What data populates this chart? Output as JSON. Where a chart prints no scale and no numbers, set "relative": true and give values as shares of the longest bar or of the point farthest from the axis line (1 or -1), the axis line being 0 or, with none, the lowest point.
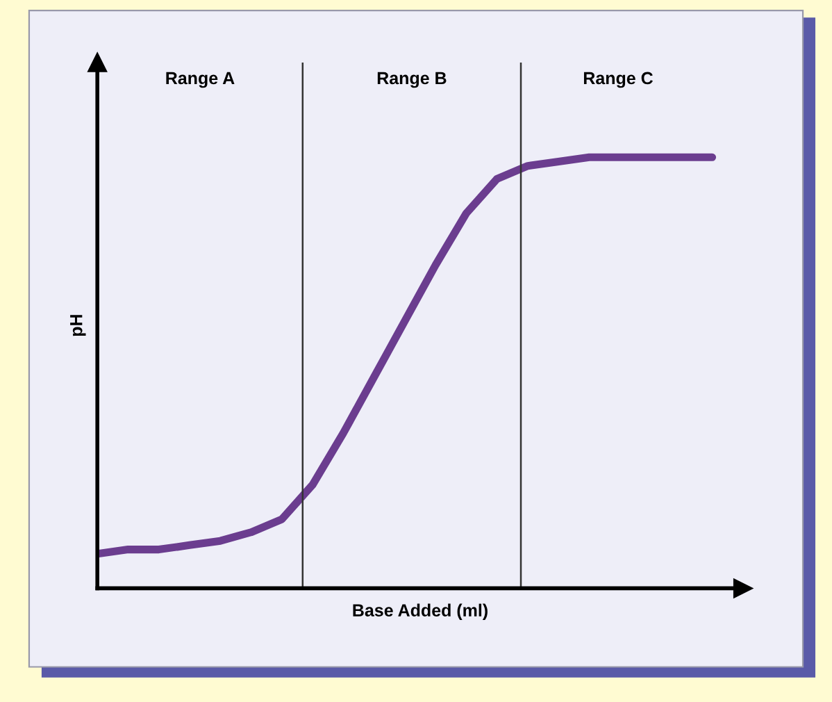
{
  "chart_data": {
    "type": "line",
    "relative": true,
    "xlabel": "Base Added (ml)",
    "ylabel": "pH",
    "categories": [
      null,
      null,
      null,
      null,
      null,
      null,
      null,
      null,
      null,
      null,
      null,
      null,
      null,
      null,
      null,
      null,
      null,
      null,
      null,
      null,
      null
    ],
    "series": [
      {
        "color": "#6b3d8f",
        "values": [
          0.08,
          0.09,
          0.09,
          0.1,
          0.11,
          0.13,
          0.16,
          0.24,
          0.36,
          0.49,
          0.62,
          0.75,
          0.87,
          0.95,
          0.98,
          0.99,
          1.0,
          1.0,
          1.0,
          1.0,
          1.0
        ]
      }
    ],
    "annotations": [
      "Range A",
      "Range B",
      "Range C"
    ],
    "tick_labels": false,
    "grid": false,
    "legend": false,
    "marker": "none",
    "line_style": "solid"
  }
}
